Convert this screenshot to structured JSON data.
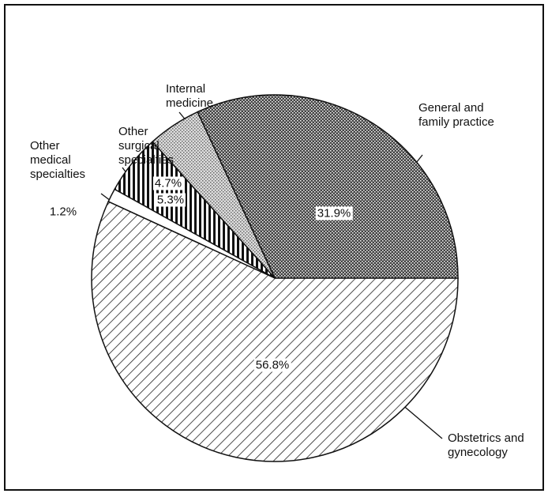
{
  "chart_data": {
    "type": "pie",
    "categories": [
      "General and\nfamily practice",
      "Internal\nmedicine",
      "Other\nsurgical\nspecialties",
      "Other\nmedical\nspecialties",
      "Obstetrics and\ngynecology"
    ],
    "values": [
      31.9,
      4.7,
      5.3,
      1.2,
      56.8
    ],
    "value_labels": [
      "31.9%",
      "4.7%",
      "5.3%",
      "1.2%",
      "56.8%"
    ]
  }
}
